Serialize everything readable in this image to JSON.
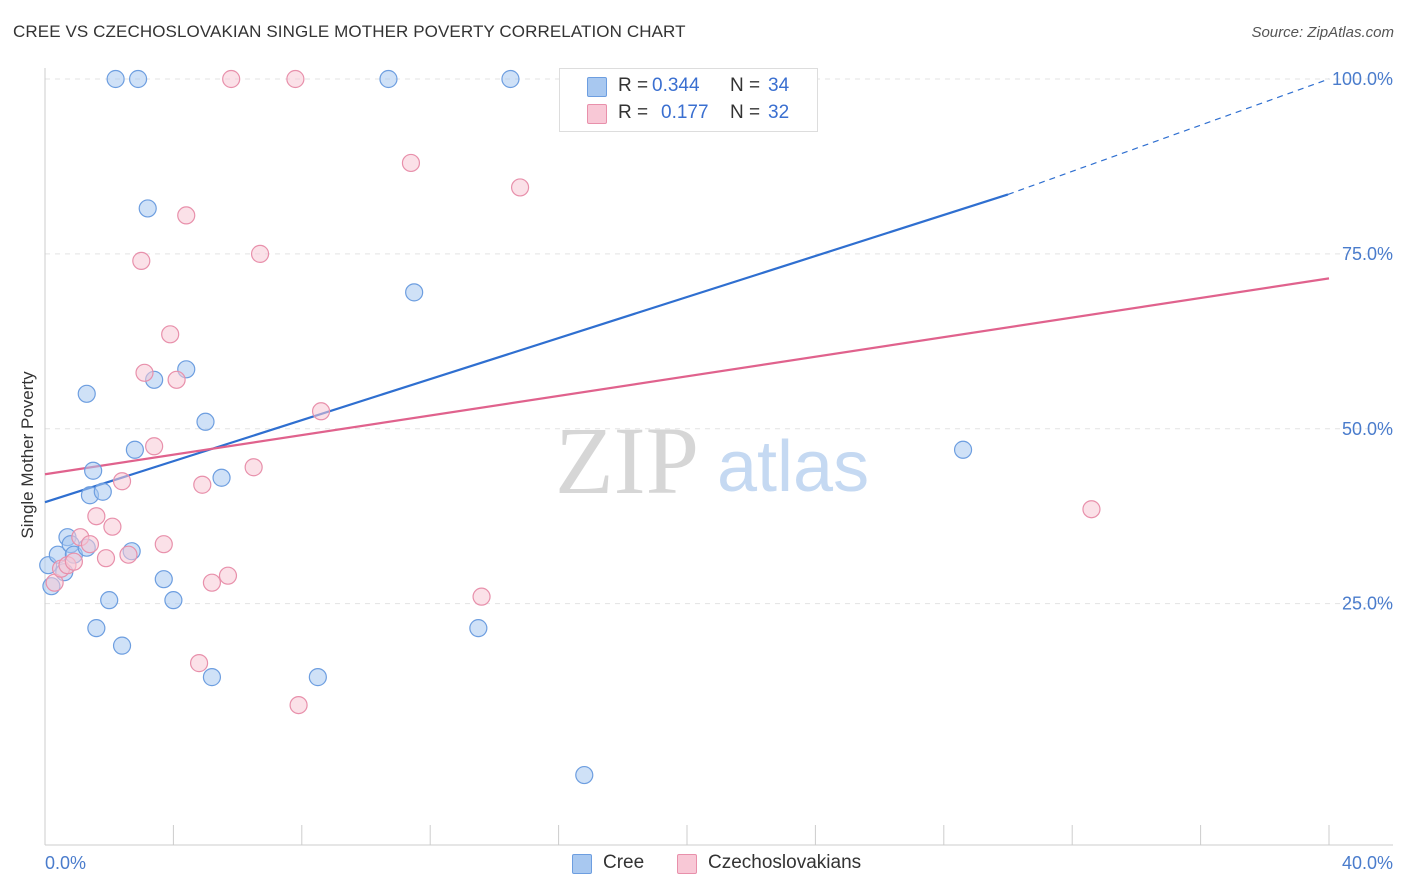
{
  "header": {
    "title": "CREE VS CZECHOSLOVAKIAN SINGLE MOTHER POVERTY CORRELATION CHART",
    "source": "Source: ZipAtlas.com"
  },
  "watermark": {
    "zip": "ZIP",
    "atlas": "atlas"
  },
  "legend": {
    "rows": [
      {
        "r_label": "R =",
        "r_value": "0.344",
        "n_label": "N =",
        "n_value": "34",
        "color": "#a8c8f0",
        "stroke": "#6d9ee0"
      },
      {
        "r_label": "R =",
        "r_value": "0.177",
        "n_label": "N =",
        "n_value": "32",
        "color": "#f8c8d6",
        "stroke": "#e890ab"
      }
    ]
  },
  "bottom_legend": {
    "items": [
      {
        "label": "Cree",
        "color": "#a8c8f0"
      },
      {
        "label": "Czechoslovakians",
        "color": "#f8c8d6"
      }
    ]
  },
  "chart_data": {
    "type": "scatter",
    "title": "CREE VS CZECHOSLOVAKIAN SINGLE MOTHER POVERTY CORRELATION CHART",
    "xlabel": "",
    "ylabel": "Single Mother Poverty",
    "xlim": [
      0,
      40
    ],
    "ylim": [
      0,
      100
    ],
    "x_tick_labels": [
      "0.0%",
      "40.0%"
    ],
    "y_tick_labels": [
      "25.0%",
      "50.0%",
      "75.0%",
      "100.0%"
    ],
    "y_ticks": [
      25,
      50,
      75,
      100
    ],
    "grid": true,
    "legend_position": "top-center",
    "series": [
      {
        "name": "Cree",
        "color": "#6d9ee0",
        "fill": "#a8c8f0",
        "line_color": "#2f6fd0",
        "trend": {
          "x0": 0,
          "y0": 39.5,
          "x1": 30,
          "y1": 83.5,
          "dashed_to_x": 40,
          "dashed_to_y": 100
        },
        "points": [
          [
            0.1,
            30.5
          ],
          [
            0.2,
            27.5
          ],
          [
            0.4,
            32
          ],
          [
            0.6,
            29.5
          ],
          [
            0.7,
            34.5
          ],
          [
            0.8,
            33.5
          ],
          [
            0.9,
            32
          ],
          [
            1.4,
            40.5
          ],
          [
            1.3,
            55
          ],
          [
            1.5,
            44
          ],
          [
            1.6,
            21.5
          ],
          [
            1.8,
            41
          ],
          [
            2.0,
            25.5
          ],
          [
            2.2,
            100
          ],
          [
            2.4,
            19
          ],
          [
            2.7,
            32.5
          ],
          [
            2.8,
            47
          ],
          [
            2.9,
            100
          ],
          [
            3.2,
            81.5
          ],
          [
            3.4,
            57
          ],
          [
            3.7,
            28.5
          ],
          [
            4.0,
            25.5
          ],
          [
            4.4,
            58.5
          ],
          [
            5.0,
            51
          ],
          [
            5.2,
            14.5
          ],
          [
            5.5,
            43
          ],
          [
            8.5,
            14.5
          ],
          [
            10.7,
            100
          ],
          [
            11.5,
            69.5
          ],
          [
            13.5,
            21.5
          ],
          [
            14.5,
            100
          ],
          [
            16.8,
            0.5
          ],
          [
            28.6,
            47
          ],
          [
            1.3,
            33
          ]
        ]
      },
      {
        "name": "Czechoslovakians",
        "color": "#e890ab",
        "fill": "#f8c8d6",
        "line_color": "#e0628d",
        "trend": {
          "x0": 0,
          "y0": 43.5,
          "x1": 40,
          "y1": 71.5
        },
        "points": [
          [
            0.3,
            28
          ],
          [
            0.5,
            30
          ],
          [
            0.7,
            30.5
          ],
          [
            0.9,
            31
          ],
          [
            1.1,
            34.5
          ],
          [
            1.4,
            33.5
          ],
          [
            1.6,
            37.5
          ],
          [
            1.9,
            31.5
          ],
          [
            2.1,
            36
          ],
          [
            2.4,
            42.5
          ],
          [
            2.6,
            32
          ],
          [
            3.0,
            74
          ],
          [
            3.1,
            58
          ],
          [
            3.4,
            47.5
          ],
          [
            3.7,
            33.5
          ],
          [
            3.9,
            63.5
          ],
          [
            4.1,
            57
          ],
          [
            4.4,
            80.5
          ],
          [
            4.8,
            16.5
          ],
          [
            4.9,
            42
          ],
          [
            5.2,
            28
          ],
          [
            5.7,
            29
          ],
          [
            5.8,
            100
          ],
          [
            6.5,
            44.5
          ],
          [
            6.7,
            75
          ],
          [
            7.8,
            100
          ],
          [
            7.9,
            10.5
          ],
          [
            8.6,
            52.5
          ],
          [
            11.4,
            88
          ],
          [
            13.6,
            26
          ],
          [
            14.8,
            84.5
          ],
          [
            32.6,
            38.5
          ]
        ]
      }
    ]
  }
}
